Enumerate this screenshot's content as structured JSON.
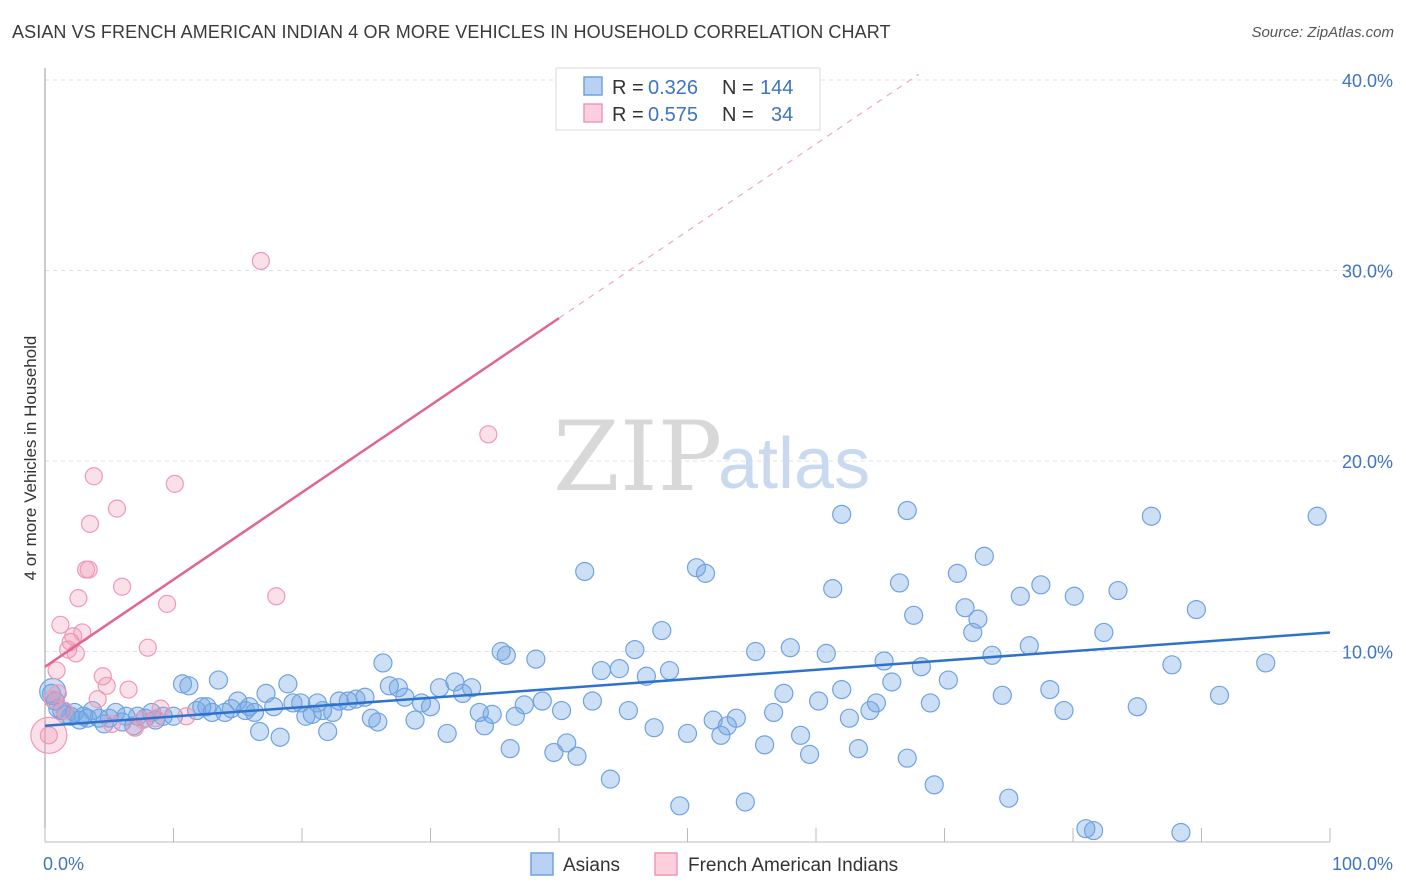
{
  "title": "ASIAN VS FRENCH AMERICAN INDIAN 4 OR MORE VEHICLES IN HOUSEHOLD CORRELATION CHART",
  "source": "Source: ZipAtlas.com",
  "watermark": {
    "zip": "ZIP",
    "atlas": "atlas"
  },
  "colors": {
    "asian": "#6fa3e2",
    "asian_line": "#2f72cd",
    "french": "#f099b5",
    "french_line": "#e06690",
    "tick": "#3d74c4"
  },
  "legend": {
    "rows": [
      {
        "r_label": "R = ",
        "r_value": "0.326",
        "n_label": "N = ",
        "n_value": "144"
      },
      {
        "r_label": "R = ",
        "r_value": "0.575",
        "n_label": "N = ",
        "n_value": "34"
      }
    ]
  },
  "chart_data": {
    "type": "scatter",
    "title": "ASIAN VS FRENCH AMERICAN INDIAN 4 OR MORE VEHICLES IN HOUSEHOLD CORRELATION CHART",
    "xlabel": "",
    "ylabel": "4 or more Vehicles in Household",
    "xlim": [
      0,
      100
    ],
    "ylim": [
      0,
      40
    ],
    "x_tick_labels": [
      "0.0%",
      "100.0%"
    ],
    "y_ticks": [
      10,
      20,
      30,
      40
    ],
    "y_tick_labels": [
      "10.0%",
      "20.0%",
      "30.0%",
      "40.0%"
    ],
    "grid": true,
    "legend_position": "top-center",
    "series": [
      {
        "name": "Asians",
        "r": 0.326,
        "n": 144,
        "trend": {
          "x": [
            0,
            100
          ],
          "y": [
            6.1,
            11.0
          ]
        },
        "points": [
          [
            0.5,
            7.8
          ],
          [
            0.8,
            7.4
          ],
          [
            1.0,
            7.0
          ],
          [
            1.3,
            6.9
          ],
          [
            1.6,
            6.7
          ],
          [
            2.0,
            6.6
          ],
          [
            2.3,
            6.8
          ],
          [
            2.7,
            6.4
          ],
          [
            3.0,
            6.6
          ],
          [
            3.3,
            6.5
          ],
          [
            3.7,
            6.9
          ],
          [
            4.2,
            6.5
          ],
          [
            4.6,
            6.2
          ],
          [
            5.0,
            6.5
          ],
          [
            5.5,
            6.8
          ],
          [
            6.0,
            6.3
          ],
          [
            6.3,
            6.6
          ],
          [
            6.9,
            6.1
          ],
          [
            7.2,
            6.6
          ],
          [
            7.8,
            6.5
          ],
          [
            8.3,
            6.8
          ],
          [
            8.6,
            6.4
          ],
          [
            9.2,
            6.6
          ],
          [
            10.0,
            6.6
          ],
          [
            10.7,
            8.3
          ],
          [
            11.2,
            8.2
          ],
          [
            11.8,
            6.9
          ],
          [
            12.2,
            7.1
          ],
          [
            12.6,
            7.1
          ],
          [
            13.0,
            6.8
          ],
          [
            13.5,
            8.5
          ],
          [
            14.0,
            6.8
          ],
          [
            14.5,
            7.0
          ],
          [
            15.0,
            7.4
          ],
          [
            15.6,
            6.9
          ],
          [
            15.9,
            7.1
          ],
          [
            16.3,
            6.8
          ],
          [
            16.7,
            5.8
          ],
          [
            17.2,
            7.8
          ],
          [
            17.8,
            7.1
          ],
          [
            18.3,
            5.5
          ],
          [
            18.9,
            8.3
          ],
          [
            19.3,
            7.3
          ],
          [
            19.9,
            7.3
          ],
          [
            20.3,
            6.6
          ],
          [
            20.8,
            6.7
          ],
          [
            21.2,
            7.3
          ],
          [
            21.6,
            6.9
          ],
          [
            22.0,
            5.8
          ],
          [
            22.4,
            6.8
          ],
          [
            22.9,
            7.4
          ],
          [
            23.6,
            7.4
          ],
          [
            24.2,
            7.5
          ],
          [
            24.9,
            7.6
          ],
          [
            25.4,
            6.5
          ],
          [
            25.9,
            6.3
          ],
          [
            26.3,
            9.4
          ],
          [
            26.8,
            8.2
          ],
          [
            27.5,
            8.1
          ],
          [
            28.0,
            7.6
          ],
          [
            28.8,
            6.4
          ],
          [
            29.3,
            7.3
          ],
          [
            30.0,
            7.1
          ],
          [
            30.7,
            8.1
          ],
          [
            31.3,
            5.7
          ],
          [
            31.9,
            8.4
          ],
          [
            32.5,
            7.8
          ],
          [
            33.2,
            8.1
          ],
          [
            33.8,
            6.8
          ],
          [
            34.2,
            6.1
          ],
          [
            34.8,
            6.7
          ],
          [
            35.5,
            10.0
          ],
          [
            35.9,
            9.8
          ],
          [
            36.2,
            4.9
          ],
          [
            36.6,
            6.6
          ],
          [
            37.3,
            7.2
          ],
          [
            38.2,
            9.6
          ],
          [
            38.7,
            7.4
          ],
          [
            39.6,
            4.7
          ],
          [
            40.2,
            6.9
          ],
          [
            40.6,
            5.2
          ],
          [
            41.4,
            4.5
          ],
          [
            42.0,
            14.2
          ],
          [
            42.6,
            7.4
          ],
          [
            43.3,
            9.0
          ],
          [
            44.0,
            3.3
          ],
          [
            44.7,
            9.1
          ],
          [
            45.4,
            6.9
          ],
          [
            45.9,
            10.1
          ],
          [
            46.8,
            8.7
          ],
          [
            47.4,
            6.0
          ],
          [
            48.0,
            11.1
          ],
          [
            48.6,
            9.0
          ],
          [
            49.4,
            1.9
          ],
          [
            50.0,
            5.7
          ],
          [
            50.7,
            14.4
          ],
          [
            51.4,
            14.1
          ],
          [
            52.0,
            6.4
          ],
          [
            52.6,
            5.6
          ],
          [
            53.1,
            6.1
          ],
          [
            53.8,
            6.5
          ],
          [
            54.5,
            2.1
          ],
          [
            55.3,
            10.0
          ],
          [
            56.0,
            5.1
          ],
          [
            56.7,
            6.8
          ],
          [
            57.5,
            7.8
          ],
          [
            58.0,
            10.2
          ],
          [
            58.8,
            5.6
          ],
          [
            59.5,
            4.6
          ],
          [
            60.2,
            7.4
          ],
          [
            60.8,
            9.9
          ],
          [
            61.3,
            13.3
          ],
          [
            62.0,
            8.0
          ],
          [
            62.6,
            6.5
          ],
          [
            63.3,
            4.9
          ],
          [
            64.2,
            6.9
          ],
          [
            64.7,
            7.3
          ],
          [
            65.3,
            9.5
          ],
          [
            65.9,
            8.4
          ],
          [
            66.5,
            13.6
          ],
          [
            67.1,
            4.4
          ],
          [
            67.6,
            11.9
          ],
          [
            68.2,
            9.2
          ],
          [
            68.9,
            7.3
          ],
          [
            69.2,
            3.0
          ],
          [
            70.3,
            8.5
          ],
          [
            71.0,
            14.1
          ],
          [
            71.6,
            12.3
          ],
          [
            72.2,
            11.0
          ],
          [
            72.6,
            11.7
          ],
          [
            73.1,
            15.0
          ],
          [
            73.7,
            9.8
          ],
          [
            74.5,
            7.7
          ],
          [
            75.0,
            2.3
          ],
          [
            75.9,
            12.9
          ],
          [
            76.6,
            10.3
          ],
          [
            77.5,
            13.5
          ],
          [
            78.2,
            8.0
          ],
          [
            79.3,
            6.9
          ],
          [
            80.1,
            12.9
          ],
          [
            81.0,
            0.7
          ],
          [
            81.6,
            0.6
          ],
          [
            82.4,
            11.0
          ],
          [
            83.5,
            13.2
          ],
          [
            85.0,
            7.1
          ],
          [
            86.1,
            17.1
          ],
          [
            87.7,
            9.3
          ],
          [
            88.4,
            0.5
          ],
          [
            89.6,
            12.2
          ],
          [
            91.4,
            7.7
          ],
          [
            95.0,
            9.4
          ],
          [
            99.0,
            17.1
          ],
          [
            62.0,
            17.2
          ],
          [
            67.1,
            17.4
          ]
        ],
        "sizes_note": "",
        "big_point": [
          0.6,
          7.9
        ]
      },
      {
        "name": "French American Indians",
        "r": 0.575,
        "n": 34,
        "trend": {
          "x": [
            0,
            40
          ],
          "y": [
            9.2,
            27.5
          ]
        },
        "trend_dashed": {
          "x": [
            40,
            68
          ],
          "y": [
            27.5,
            40.3
          ]
        },
        "points": [
          [
            0.3,
            5.6
          ],
          [
            0.6,
            7.5
          ],
          [
            0.9,
            9.0
          ],
          [
            1.2,
            11.4
          ],
          [
            1.5,
            6.9
          ],
          [
            1.8,
            10.1
          ],
          [
            2.0,
            10.5
          ],
          [
            2.2,
            10.8
          ],
          [
            2.4,
            9.9
          ],
          [
            2.6,
            12.8
          ],
          [
            2.9,
            11.0
          ],
          [
            3.2,
            14.3
          ],
          [
            3.5,
            16.7
          ],
          [
            3.8,
            19.2
          ],
          [
            4.1,
            7.5
          ],
          [
            4.5,
            8.7
          ],
          [
            4.8,
            8.2
          ],
          [
            5.2,
            6.2
          ],
          [
            5.6,
            17.5
          ],
          [
            6.0,
            13.4
          ],
          [
            6.5,
            8.0
          ],
          [
            7.0,
            6.0
          ],
          [
            7.6,
            6.4
          ],
          [
            8.0,
            10.2
          ],
          [
            8.6,
            6.5
          ],
          [
            9.0,
            7.0
          ],
          [
            9.5,
            12.5
          ],
          [
            10.1,
            18.8
          ],
          [
            11.0,
            6.6
          ],
          [
            16.8,
            30.5
          ],
          [
            18.0,
            12.9
          ],
          [
            34.5,
            21.4
          ],
          [
            1.0,
            7.8
          ],
          [
            3.4,
            14.3
          ]
        ],
        "big_point": [
          0.3,
          5.6
        ]
      }
    ]
  },
  "bottom_legend": [
    {
      "label": "Asians"
    },
    {
      "label": "French American Indians"
    }
  ]
}
